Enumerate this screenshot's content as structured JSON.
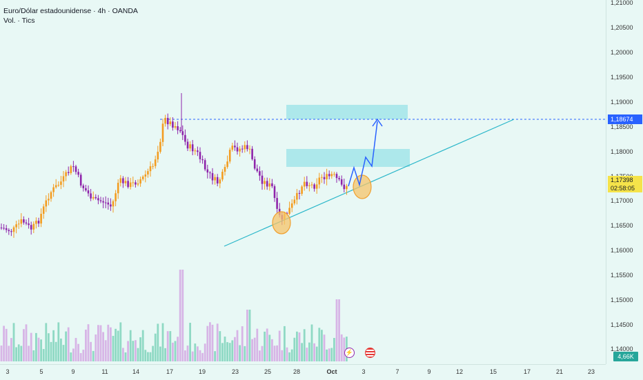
{
  "legend": {
    "title": "Euro/Dólar estadounidense · 4h · OANDA",
    "volume_label": "Vol. · Tics"
  },
  "price_axis": {
    "ticks": [
      "1,21000",
      "1,20500",
      "1,20000",
      "1,19500",
      "1,19000",
      "1,18500",
      "1,18000",
      "1,17500",
      "1,17000",
      "1,16500",
      "1,16000",
      "1,15500",
      "1,15000",
      "1,14500",
      "1,14000"
    ],
    "target_label": "1,18674",
    "current_price": "1,17398",
    "countdown": "02:58:05",
    "volume_label": "4,66K"
  },
  "time_axis": {
    "ticks": [
      "3",
      "5",
      "9",
      "11",
      "14",
      "17",
      "19",
      "23",
      "25",
      "28",
      "Oct",
      "3",
      "7",
      "9",
      "12",
      "15",
      "17",
      "21",
      "23"
    ]
  },
  "colors": {
    "up": "#f39c1f",
    "down": "#8e24aa",
    "vol_up": "#8fd9c4",
    "vol_down": "#d7b5e6",
    "trendline": "#29b6c9",
    "zone": "#a6e6ea",
    "projection": "#2962ff",
    "highlight": "#f5c469"
  },
  "events": {
    "flash_icon": "flash-icon",
    "flag_icon": "us-flag-icon"
  }
}
